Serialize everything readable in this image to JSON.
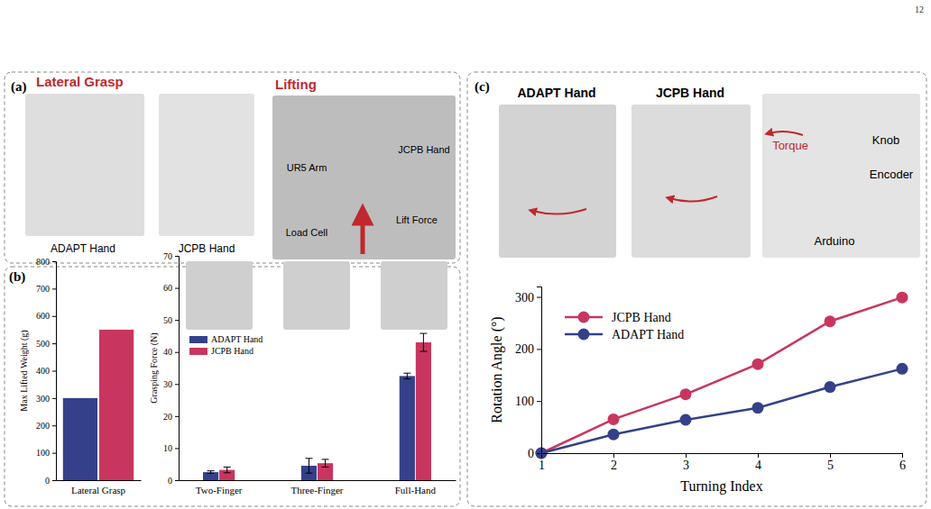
{
  "page_number": "12",
  "panels": [
    {
      "letter": "(a)",
      "headings": [
        "Lateral Grasp",
        "Lifting"
      ],
      "captions": [
        "ADAPT Hand",
        "JCPB Hand"
      ],
      "labels": [
        "UR5 Arm",
        "JCPB Hand",
        "Load Cell",
        "Lift Force"
      ]
    },
    {
      "letter": "(b)"
    },
    {
      "letter": "(c)",
      "headings": [
        "ADAPT Hand",
        "JCPB Hand"
      ],
      "labels": [
        "Torque",
        "Knob",
        "Encoder",
        "Arduino"
      ]
    }
  ],
  "chart_data": [
    {
      "type": "bar",
      "y_label": "Max Lifted Weight (g)",
      "categories": [
        "Lateral Grasp"
      ],
      "series": [
        {
          "color": "#34418a",
          "values": [
            300
          ]
        },
        {
          "color": "#c8365f",
          "values": [
            550
          ]
        }
      ],
      "ylim": [
        0,
        800
      ],
      "yticks": [
        0,
        100,
        200,
        300,
        400,
        500,
        600,
        700,
        800
      ]
    },
    {
      "type": "bar",
      "y_label": "Grasping Force (N)",
      "categories": [
        "Two-Finger",
        "Three-Finger",
        "Full-Hand"
      ],
      "series": [
        {
          "name": "ADAPT Hand",
          "color": "#34418a",
          "values": [
            2.5,
            4.5,
            32.5
          ],
          "errors": [
            0.4,
            2.3,
            0.9
          ]
        },
        {
          "name": "JCPB Hand",
          "color": "#c8365f",
          "values": [
            3.2,
            5.3,
            43
          ],
          "errors": [
            0.9,
            1.2,
            2.8
          ]
        }
      ],
      "ylim": [
        0,
        70
      ],
      "yticks": [
        0,
        10,
        20,
        30,
        40,
        50,
        60,
        70
      ],
      "legend": "upper left"
    },
    {
      "type": "line",
      "x_label": "Turning Index",
      "y_label": "Rotation Angle (°)",
      "x": [
        1,
        2,
        3,
        4,
        5,
        6
      ],
      "series": [
        {
          "name": "JCPB Hand",
          "color": "#c8365f",
          "values": [
            0,
            65,
            113,
            171,
            253,
            299
          ]
        },
        {
          "name": "ADAPT Hand",
          "color": "#34418a",
          "values": [
            0,
            36,
            64,
            87,
            127,
            162
          ]
        }
      ],
      "xlim": [
        1,
        6
      ],
      "xticks": [
        1,
        2,
        3,
        4,
        5,
        6
      ],
      "ylim": [
        0,
        320
      ],
      "yticks": [
        0,
        100,
        200,
        300
      ],
      "marker": "circle",
      "legend": "upper left"
    }
  ]
}
